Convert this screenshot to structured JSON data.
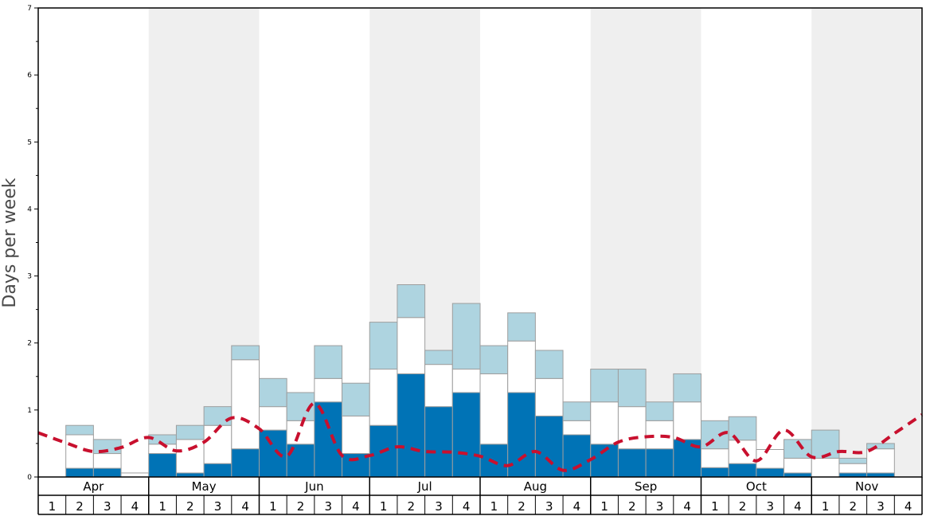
{
  "chart_data": {
    "type": "bar",
    "stacked": true,
    "ylabel": "Days per week",
    "xlabel": "",
    "title": "",
    "ylim": [
      0,
      7
    ],
    "y_ticks": [
      "0",
      "1",
      "2",
      "3",
      "4",
      "5",
      "6",
      "7"
    ],
    "months": [
      "Apr",
      "May",
      "Jun",
      "Jul",
      "Aug",
      "Sep",
      "Oct",
      "Nov"
    ],
    "week_labels": [
      "1",
      "2",
      "3",
      "4"
    ],
    "colors": {
      "dark_bar": "#0073b6",
      "white_bar": "#ffffff",
      "light_bar": "#aed4e0",
      "bar_outline": "#9e9e9e",
      "alt_band": "#efefef",
      "dashed_line": "#c8102e"
    },
    "series": [
      {
        "values": [
          0,
          0.13,
          0.13,
          0,
          0.35,
          0.06,
          0.2,
          0.42,
          0.7,
          0.49,
          1.12,
          0.35,
          0.77,
          1.54,
          1.05,
          1.26,
          0.49,
          1.26,
          0.91,
          0.63,
          0.49,
          0.42,
          0.42,
          0.56,
          0.14,
          0.2,
          0.13,
          0.06,
          0,
          0.06,
          0.06,
          0
        ]
      },
      {
        "values": [
          0,
          0.5,
          0.22,
          0.06,
          0.14,
          0.5,
          0.57,
          1.33,
          0.35,
          0.35,
          0.35,
          0.56,
          0.84,
          0.84,
          0.63,
          0.35,
          1.05,
          0.77,
          0.56,
          0.21,
          0.63,
          0.63,
          0.42,
          0.56,
          0.28,
          0.35,
          0.28,
          0.22,
          0.28,
          0.14,
          0.36,
          0
        ]
      },
      {
        "values": [
          0,
          0.14,
          0.21,
          0,
          0.14,
          0.21,
          0.28,
          0.21,
          0.42,
          0.42,
          0.49,
          0.49,
          0.7,
          0.49,
          0.21,
          0.98,
          0.42,
          0.42,
          0.42,
          0.28,
          0.49,
          0.56,
          0.28,
          0.42,
          0.42,
          0.35,
          0,
          0.28,
          0.42,
          0.08,
          0.08,
          0
        ]
      }
    ],
    "line": {
      "style": "dashed",
      "values": [
        0.66,
        0.51,
        0.38,
        0.44,
        0.59,
        0.39,
        0.52,
        0.88,
        0.72,
        0.31,
        1.1,
        0.32,
        0.32,
        0.45,
        0.38,
        0.37,
        0.31,
        0.17,
        0.38,
        0.1,
        0.26,
        0.52,
        0.6,
        0.59,
        0.45,
        0.66,
        0.24,
        0.7,
        0.3,
        0.38,
        0.38,
        0.65,
        0.93
      ]
    }
  }
}
